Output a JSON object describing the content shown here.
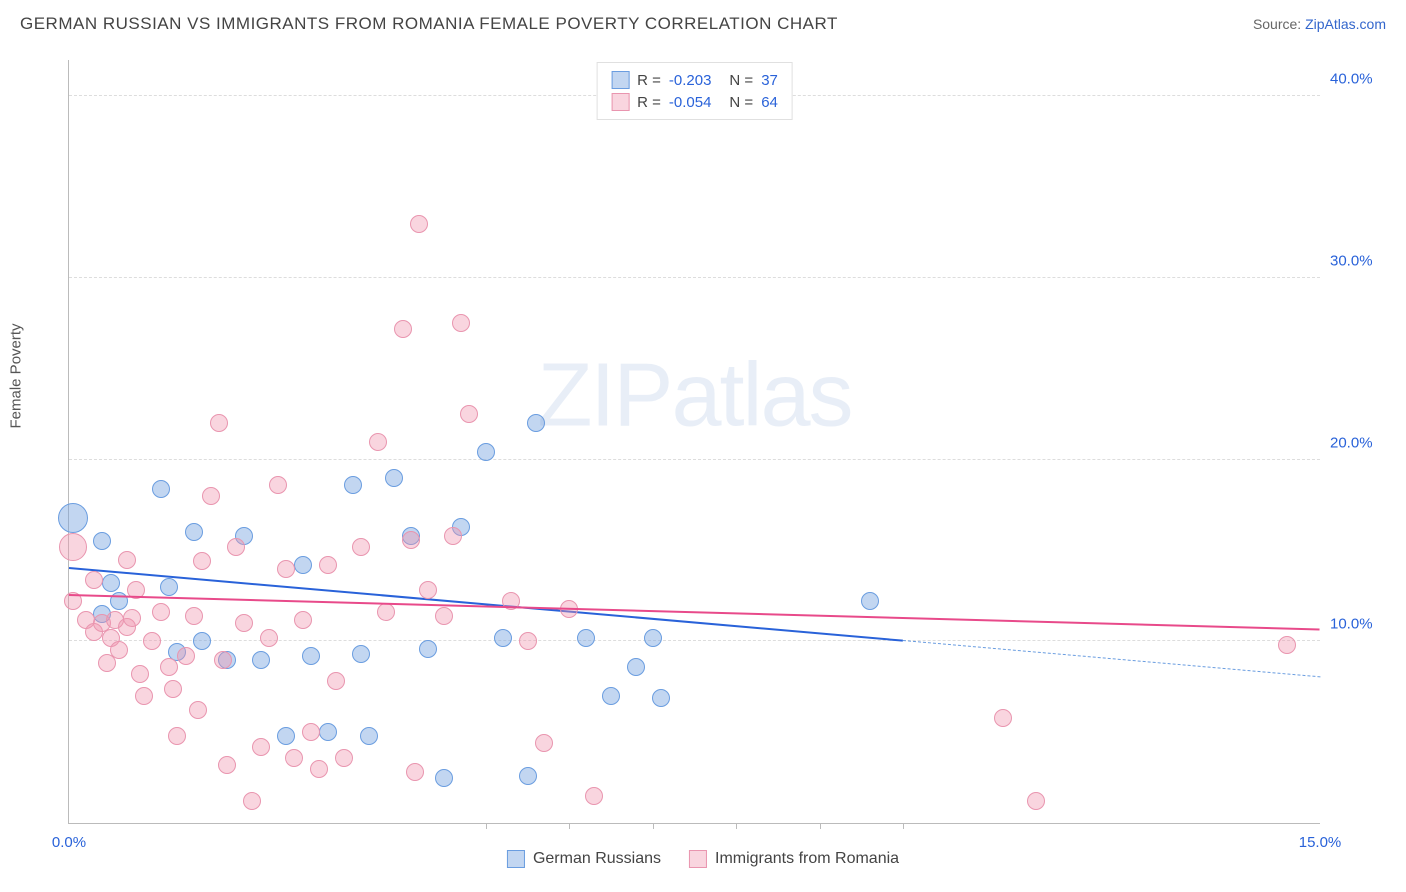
{
  "title": "GERMAN RUSSIAN VS IMMIGRANTS FROM ROMANIA FEMALE POVERTY CORRELATION CHART",
  "source_prefix": "Source: ",
  "source_link": "ZipAtlas.com",
  "ylabel": "Female Poverty",
  "watermark_a": "ZIP",
  "watermark_b": "atlas",
  "chart": {
    "type": "scatter",
    "xlim": [
      0,
      15
    ],
    "ylim": [
      0,
      42
    ],
    "xticks": [
      {
        "v": 0,
        "l": "0.0%"
      },
      {
        "v": 15,
        "l": "15.0%"
      }
    ],
    "xmarks": [
      5,
      6,
      7,
      8,
      9,
      10
    ],
    "yticks": [
      {
        "v": 10,
        "l": "10.0%"
      },
      {
        "v": 20,
        "l": "20.0%"
      },
      {
        "v": 30,
        "l": "30.0%"
      },
      {
        "v": 40,
        "l": "40.0%"
      }
    ],
    "tick_color": "#2962d9",
    "background_color": "#ffffff",
    "grid_color": "#dddddd",
    "series": [
      {
        "name": "German Russians",
        "color_fill": "rgba(120,165,225,0.45)",
        "color_stroke": "#6a9de0",
        "marker_r": 9,
        "R": "-0.203",
        "N": "37",
        "trend": {
          "x1": 0,
          "y1": 14.0,
          "x2": 10,
          "y2": 10.0,
          "color": "#2962d9",
          "width": 2.5
        },
        "trend_ext": {
          "x1": 10,
          "y1": 10.0,
          "x2": 15,
          "y2": 8.0,
          "color": "#6a9de0",
          "width": 1.5,
          "dash": true
        },
        "points": [
          [
            0.05,
            16.8,
            15
          ],
          [
            0.4,
            15.5
          ],
          [
            0.5,
            13.2
          ],
          [
            0.4,
            11.5
          ],
          [
            0.6,
            12.2
          ],
          [
            1.1,
            18.4
          ],
          [
            1.2,
            13.0
          ],
          [
            1.3,
            9.4
          ],
          [
            1.5,
            16.0
          ],
          [
            1.6,
            10.0
          ],
          [
            1.9,
            9.0
          ],
          [
            2.1,
            15.8
          ],
          [
            2.3,
            9.0
          ],
          [
            2.6,
            4.8
          ],
          [
            2.8,
            14.2
          ],
          [
            2.9,
            9.2
          ],
          [
            3.1,
            5.0
          ],
          [
            3.4,
            18.6
          ],
          [
            3.5,
            9.3
          ],
          [
            3.6,
            4.8
          ],
          [
            3.9,
            19.0
          ],
          [
            4.1,
            15.8
          ],
          [
            4.3,
            9.6
          ],
          [
            4.5,
            2.5
          ],
          [
            4.7,
            16.3
          ],
          [
            5.0,
            20.4
          ],
          [
            5.2,
            10.2
          ],
          [
            5.5,
            2.6
          ],
          [
            5.6,
            22.0
          ],
          [
            6.2,
            10.2
          ],
          [
            6.5,
            7.0
          ],
          [
            6.8,
            8.6
          ],
          [
            7.0,
            10.2
          ],
          [
            7.1,
            6.9
          ],
          [
            9.6,
            12.2
          ]
        ]
      },
      {
        "name": "Immigrants from Romania",
        "color_fill": "rgba(240,150,175,0.40)",
        "color_stroke": "#e995af",
        "marker_r": 9,
        "R": "-0.054",
        "N": "64",
        "trend": {
          "x1": 0,
          "y1": 12.5,
          "x2": 15,
          "y2": 10.6,
          "color": "#e84a8a",
          "width": 2.5
        },
        "points": [
          [
            0.05,
            15.2,
            14
          ],
          [
            0.05,
            12.2
          ],
          [
            0.2,
            11.2
          ],
          [
            0.3,
            13.4
          ],
          [
            0.3,
            10.5
          ],
          [
            0.4,
            11.0
          ],
          [
            0.45,
            8.8
          ],
          [
            0.5,
            10.2
          ],
          [
            0.55,
            11.2
          ],
          [
            0.6,
            9.5
          ],
          [
            0.7,
            14.5
          ],
          [
            0.7,
            10.8
          ],
          [
            0.75,
            11.3
          ],
          [
            0.8,
            12.8
          ],
          [
            0.85,
            8.2
          ],
          [
            0.9,
            7.0
          ],
          [
            1.0,
            10.0
          ],
          [
            1.1,
            11.6
          ],
          [
            1.2,
            8.6
          ],
          [
            1.25,
            7.4
          ],
          [
            1.3,
            4.8
          ],
          [
            1.4,
            9.2
          ],
          [
            1.5,
            11.4
          ],
          [
            1.55,
            6.2
          ],
          [
            1.6,
            14.4
          ],
          [
            1.7,
            18.0
          ],
          [
            1.8,
            22.0
          ],
          [
            1.85,
            9.0
          ],
          [
            1.9,
            3.2
          ],
          [
            2.0,
            15.2
          ],
          [
            2.1,
            11.0
          ],
          [
            2.2,
            1.2
          ],
          [
            2.3,
            4.2
          ],
          [
            2.4,
            10.2
          ],
          [
            2.5,
            18.6
          ],
          [
            2.6,
            14.0
          ],
          [
            2.7,
            3.6
          ],
          [
            2.8,
            11.2
          ],
          [
            2.9,
            5.0
          ],
          [
            3.0,
            3.0
          ],
          [
            3.1,
            14.2
          ],
          [
            3.2,
            7.8
          ],
          [
            3.3,
            3.6
          ],
          [
            3.5,
            15.2
          ],
          [
            3.7,
            21.0
          ],
          [
            3.8,
            11.6
          ],
          [
            4.0,
            27.2
          ],
          [
            4.1,
            15.6
          ],
          [
            4.15,
            2.8
          ],
          [
            4.2,
            33.0
          ],
          [
            4.3,
            12.8
          ],
          [
            4.5,
            11.4
          ],
          [
            4.6,
            15.8
          ],
          [
            4.7,
            27.5
          ],
          [
            4.8,
            22.5
          ],
          [
            5.3,
            12.2
          ],
          [
            5.5,
            10.0
          ],
          [
            5.7,
            4.4
          ],
          [
            6.0,
            11.8
          ],
          [
            6.3,
            1.5
          ],
          [
            11.2,
            5.8
          ],
          [
            11.6,
            1.2
          ],
          [
            14.6,
            9.8
          ]
        ]
      }
    ]
  }
}
